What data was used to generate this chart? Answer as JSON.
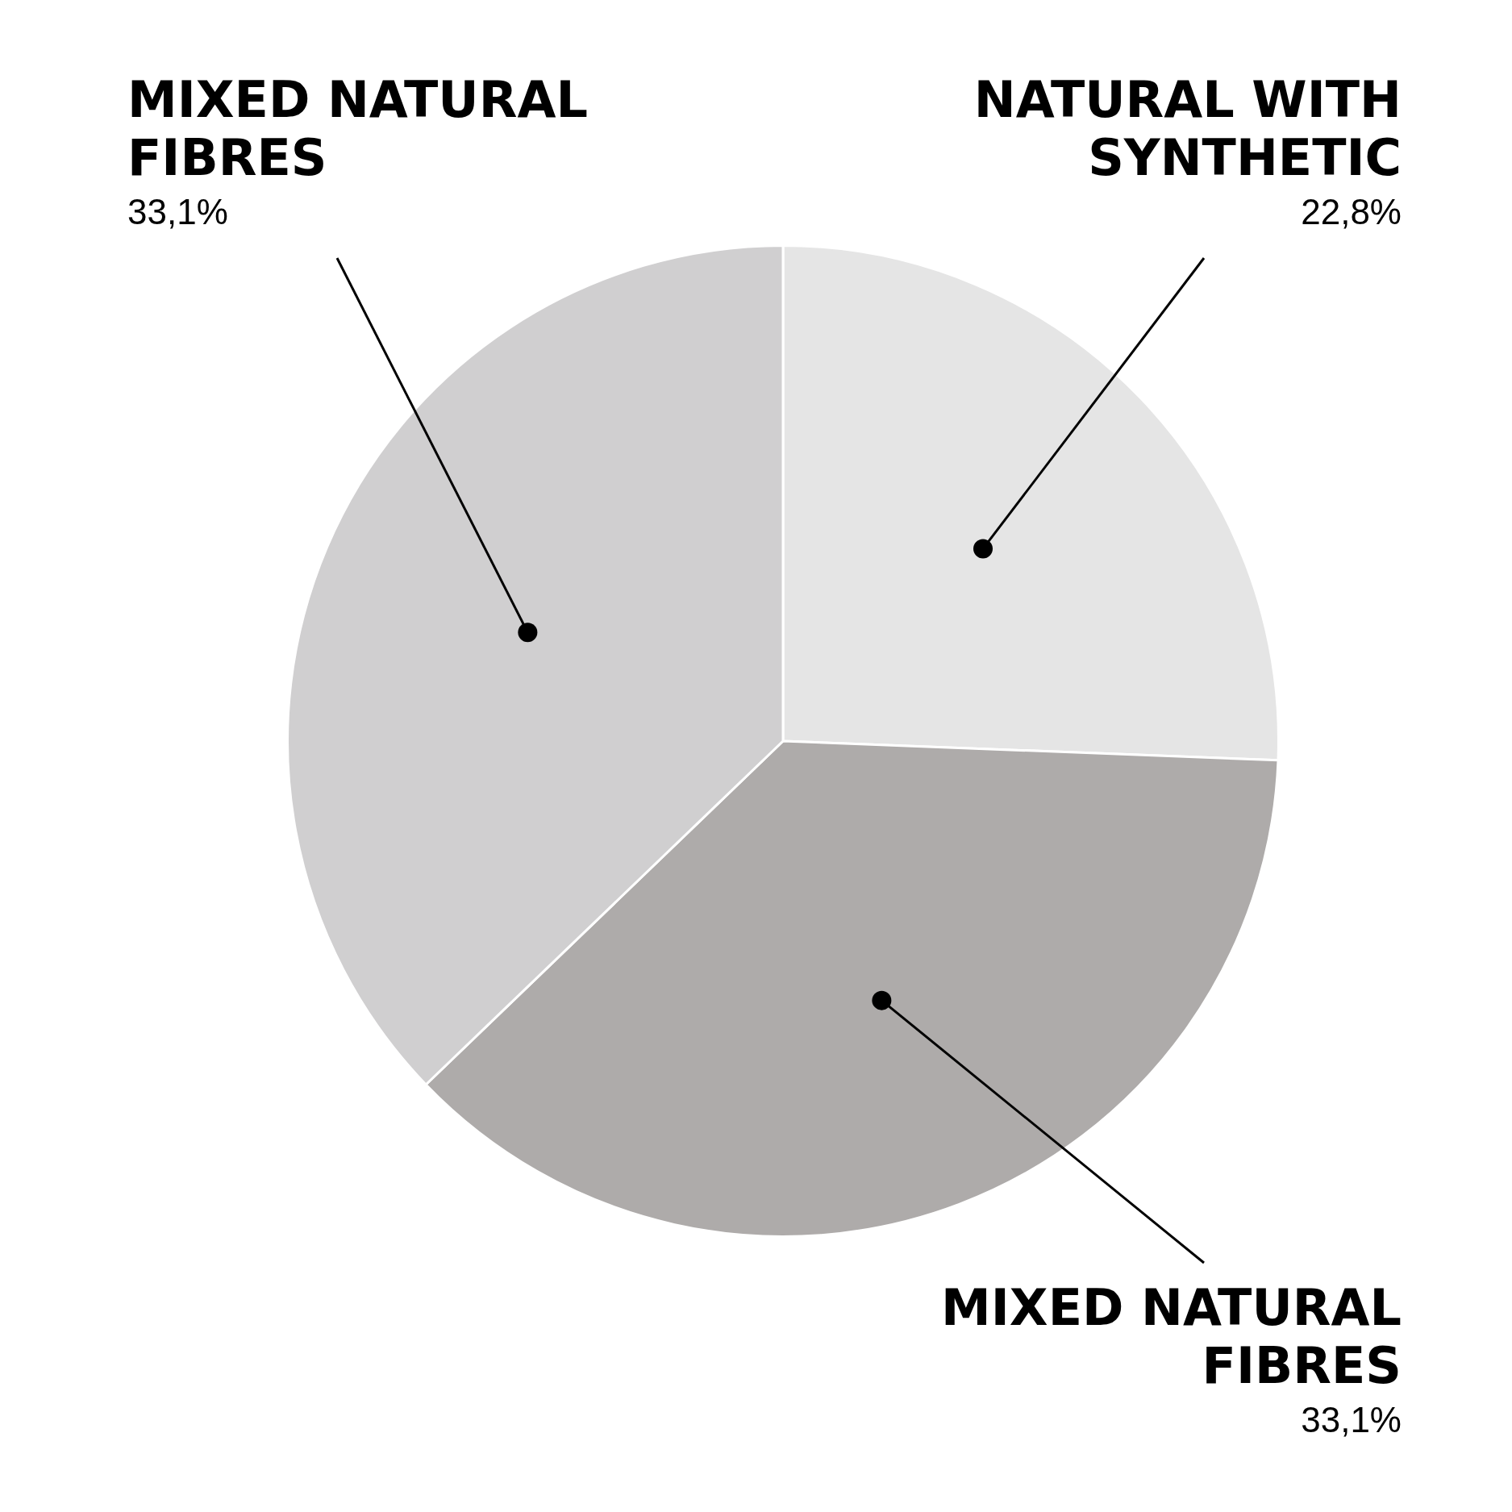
{
  "chart_data": {
    "type": "pie",
    "categories": [
      "NATURAL WITH SYNTHETIC",
      "MIXED NATURAL FIBRES",
      "MIXED NATURAL FIBRES"
    ],
    "values": [
      22.8,
      33.1,
      33.1
    ],
    "value_labels": [
      "22,8%",
      "33,1%",
      "33,1%"
    ],
    "colors": [
      "#e5e5e5",
      "#aeabaa",
      "#d0cfd0"
    ],
    "legend": false
  }
}
